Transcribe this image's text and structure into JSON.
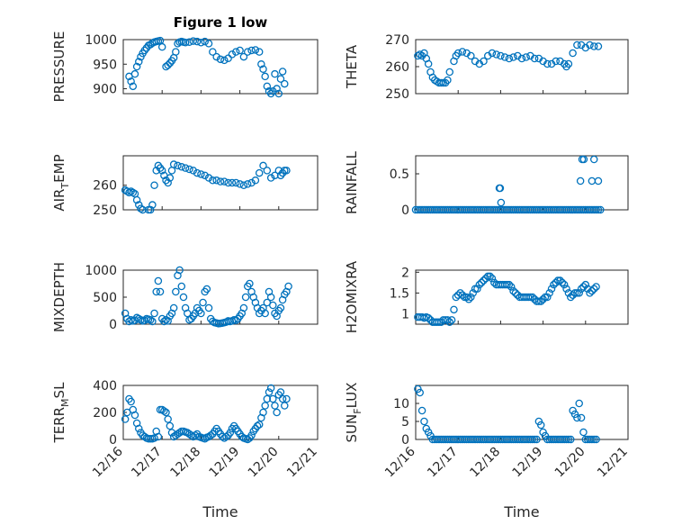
{
  "figure": {
    "title": "Figure 1 low"
  },
  "style": {
    "marker_color": "#0072bd",
    "marker": "o"
  },
  "chart_data": [
    {
      "type": "scatter",
      "ylabel": "PRESSURE",
      "xlabel": "",
      "title": "Figure 1 low",
      "xlim": [
        "12/16",
        "12/21"
      ],
      "ylim": [
        890,
        1000
      ],
      "yticks": [
        900,
        950,
        1000
      ],
      "xticks": [],
      "grid": true,
      "x": [
        16.15,
        16.2,
        16.25,
        16.3,
        16.35,
        16.4,
        16.45,
        16.5,
        16.55,
        16.6,
        16.65,
        16.7,
        16.75,
        16.8,
        16.85,
        16.9,
        16.95,
        17.0,
        17.1,
        17.15,
        17.2,
        17.25,
        17.3,
        17.35,
        17.4,
        17.45,
        17.5,
        17.55,
        17.6,
        17.7,
        17.8,
        17.9,
        18.0,
        18.1,
        18.2,
        18.3,
        18.4,
        18.5,
        18.6,
        18.7,
        18.8,
        18.9,
        19.0,
        19.1,
        19.2,
        19.3,
        19.4,
        19.5,
        19.55,
        19.6,
        19.65,
        19.7,
        19.75,
        19.8,
        19.85,
        19.9,
        19.95,
        20.0,
        20.05,
        20.1,
        20.15
      ],
      "y": [
        925,
        915,
        905,
        930,
        945,
        955,
        965,
        972,
        978,
        983,
        988,
        990,
        993,
        995,
        996,
        997,
        998,
        985,
        945,
        948,
        952,
        957,
        963,
        975,
        992,
        995,
        996,
        995,
        994,
        995,
        997,
        996,
        994,
        996,
        992,
        975,
        965,
        960,
        958,
        962,
        970,
        975,
        978,
        965,
        975,
        978,
        979,
        975,
        950,
        940,
        925,
        905,
        895,
        890,
        895,
        930,
        900,
        890,
        920,
        935,
        910
      ]
    },
    {
      "type": "scatter",
      "ylabel": "THETA",
      "xlabel": "",
      "title": "",
      "xlim": [
        "12/16",
        "12/21"
      ],
      "ylim": [
        250,
        270
      ],
      "yticks": [
        250,
        260,
        270
      ],
      "xticks": [],
      "grid": true,
      "x": [
        16.05,
        16.1,
        16.15,
        16.2,
        16.25,
        16.3,
        16.35,
        16.4,
        16.45,
        16.5,
        16.55,
        16.6,
        16.65,
        16.7,
        16.75,
        16.8,
        16.9,
        16.95,
        17.0,
        17.1,
        17.2,
        17.3,
        17.4,
        17.5,
        17.6,
        17.7,
        17.8,
        17.9,
        18.0,
        18.1,
        18.2,
        18.3,
        18.4,
        18.5,
        18.6,
        18.7,
        18.8,
        18.9,
        19.0,
        19.1,
        19.2,
        19.3,
        19.4,
        19.5,
        19.55,
        19.6,
        19.7,
        19.8,
        19.9,
        20.0,
        20.1,
        20.2,
        20.3
      ],
      "y": [
        264,
        264.5,
        264,
        265,
        263,
        261,
        258,
        256,
        255,
        254.5,
        254,
        254,
        254,
        254,
        255,
        258,
        262,
        264,
        265,
        265.5,
        265,
        264,
        262,
        261,
        262,
        264,
        265,
        264.5,
        264,
        263.5,
        263,
        263.5,
        264,
        263,
        263.5,
        264,
        263,
        263,
        262,
        261,
        261,
        262,
        262,
        261,
        260,
        261,
        265,
        268,
        268,
        267,
        268,
        267.5,
        267.5
      ]
    },
    {
      "type": "scatter",
      "ylabel": "AIR_TEMP",
      "xlabel": "",
      "title": "",
      "xlim": [
        "12/16",
        "12/21"
      ],
      "ylim": [
        250,
        272
      ],
      "yticks": [
        250,
        260
      ],
      "xticks": [],
      "grid": true,
      "x": [
        16.05,
        16.1,
        16.15,
        16.2,
        16.25,
        16.3,
        16.35,
        16.4,
        16.45,
        16.5,
        16.55,
        16.6,
        16.65,
        16.7,
        16.75,
        16.8,
        16.85,
        16.9,
        16.95,
        17.0,
        17.05,
        17.1,
        17.15,
        17.2,
        17.25,
        17.3,
        17.4,
        17.5,
        17.6,
        17.7,
        17.8,
        17.9,
        18.0,
        18.1,
        18.2,
        18.3,
        18.4,
        18.5,
        18.6,
        18.7,
        18.8,
        18.9,
        19.0,
        19.1,
        19.2,
        19.3,
        19.4,
        19.5,
        19.6,
        19.7,
        19.8,
        19.9,
        20.0,
        20.05,
        20.1,
        20.15,
        20.2
      ],
      "y": [
        258,
        257.5,
        257,
        257.5,
        257,
        256.5,
        254,
        252,
        250.5,
        250,
        249.5,
        249.5,
        250,
        250,
        252,
        260,
        266,
        268,
        267,
        266,
        264,
        262,
        261,
        263,
        266,
        268.5,
        268,
        267.5,
        267,
        266.5,
        266,
        265,
        264.5,
        264,
        263,
        262,
        262,
        261.5,
        261.5,
        261,
        261,
        261,
        260.5,
        260,
        260.5,
        261,
        262,
        265,
        268,
        266,
        263,
        264,
        266,
        264,
        265,
        266,
        266
      ]
    },
    {
      "type": "scatter",
      "ylabel": "RAINFALL",
      "xlabel": "",
      "title": "",
      "xlim": [
        "12/16",
        "12/21"
      ],
      "ylim": [
        0,
        0.75
      ],
      "yticks": [
        0,
        0.5
      ],
      "xticks": [],
      "grid": true,
      "x": [
        16.0,
        16.05,
        16.1,
        16.15,
        16.2,
        16.25,
        16.3,
        16.35,
        16.4,
        16.45,
        16.5,
        16.55,
        16.6,
        16.65,
        16.7,
        16.75,
        16.8,
        16.85,
        16.9,
        16.95,
        17.0,
        17.05,
        17.1,
        17.15,
        17.2,
        17.25,
        17.3,
        17.35,
        17.4,
        17.45,
        17.5,
        17.55,
        17.6,
        17.65,
        17.7,
        17.75,
        17.8,
        17.85,
        17.9,
        17.95,
        18.0,
        18.05,
        18.1,
        18.15,
        18.2,
        18.25,
        18.3,
        18.35,
        18.4,
        18.45,
        18.5,
        18.55,
        18.6,
        18.65,
        18.7,
        18.75,
        18.8,
        18.85,
        18.9,
        18.95,
        19.0,
        19.05,
        19.1,
        19.15,
        19.2,
        19.25,
        19.3,
        19.35,
        19.4,
        19.45,
        19.5,
        19.55,
        19.6,
        19.65,
        19.7,
        19.75,
        19.8,
        19.85,
        19.9,
        19.95,
        20.0,
        20.05,
        20.1,
        20.15,
        20.2,
        20.25,
        20.3,
        20.35,
        17.97,
        17.99,
        18.01,
        19.88,
        19.92,
        19.96,
        20.15,
        20.2,
        20.3
      ],
      "y": [
        0,
        0,
        0,
        0,
        0,
        0,
        0,
        0,
        0,
        0,
        0,
        0,
        0,
        0,
        0,
        0,
        0,
        0,
        0,
        0,
        0,
        0,
        0,
        0,
        0,
        0,
        0,
        0,
        0,
        0,
        0,
        0,
        0,
        0,
        0,
        0,
        0,
        0,
        0,
        0,
        0,
        0,
        0,
        0,
        0,
        0,
        0,
        0,
        0,
        0,
        0,
        0,
        0,
        0,
        0,
        0,
        0,
        0,
        0,
        0,
        0,
        0,
        0,
        0,
        0,
        0,
        0,
        0,
        0,
        0,
        0,
        0,
        0,
        0,
        0,
        0,
        0,
        0,
        0,
        0,
        0,
        0,
        0,
        0,
        0,
        0,
        0,
        0,
        0.3,
        0.3,
        0.1,
        0.4,
        0.7,
        0.7,
        0.4,
        0.7,
        0.4
      ]
    },
    {
      "type": "scatter",
      "ylabel": "MIXDEPTH",
      "xlabel": "",
      "title": "",
      "xlim": [
        "12/16",
        "12/21"
      ],
      "ylim": [
        0,
        1000
      ],
      "yticks": [
        0,
        500,
        1000
      ],
      "xticks": [],
      "grid": true,
      "x": [
        16.05,
        16.1,
        16.15,
        16.2,
        16.25,
        16.3,
        16.35,
        16.4,
        16.45,
        16.5,
        16.55,
        16.6,
        16.65,
        16.7,
        16.75,
        16.8,
        16.85,
        16.9,
        16.95,
        17.0,
        17.05,
        17.1,
        17.15,
        17.2,
        17.25,
        17.3,
        17.35,
        17.4,
        17.45,
        17.5,
        17.55,
        17.6,
        17.65,
        17.7,
        17.75,
        17.8,
        17.85,
        17.9,
        17.95,
        18.0,
        18.05,
        18.1,
        18.15,
        18.2,
        18.25,
        18.3,
        18.35,
        18.4,
        18.45,
        18.5,
        18.55,
        18.6,
        18.65,
        18.7,
        18.75,
        18.8,
        18.85,
        18.9,
        18.95,
        19.0,
        19.05,
        19.1,
        19.15,
        19.2,
        19.25,
        19.3,
        19.35,
        19.4,
        19.45,
        19.5,
        19.55,
        19.6,
        19.65,
        19.7,
        19.75,
        19.8,
        19.85,
        19.9,
        19.95,
        20.0,
        20.05,
        20.1,
        20.15,
        20.2,
        20.25
      ],
      "y": [
        200,
        100,
        50,
        80,
        60,
        70,
        120,
        100,
        80,
        60,
        70,
        100,
        90,
        80,
        50,
        200,
        600,
        800,
        600,
        100,
        50,
        80,
        60,
        150,
        200,
        300,
        600,
        900,
        1000,
        700,
        500,
        300,
        200,
        80,
        100,
        150,
        200,
        300,
        250,
        200,
        400,
        600,
        650,
        300,
        100,
        50,
        30,
        20,
        10,
        15,
        20,
        30,
        40,
        60,
        50,
        60,
        80,
        70,
        100,
        150,
        200,
        300,
        500,
        700,
        750,
        600,
        500,
        400,
        300,
        200,
        250,
        300,
        200,
        400,
        600,
        500,
        350,
        200,
        150,
        250,
        300,
        450,
        550,
        600,
        700
      ]
    },
    {
      "type": "scatter",
      "ylabel": "H2OMIXRA",
      "xlabel": "",
      "title": "",
      "xlim": [
        "12/16",
        "12/21"
      ],
      "ylim": [
        0.75,
        2.05
      ],
      "yticks": [
        1,
        1.5,
        2
      ],
      "xticks": [],
      "grid": true,
      "x": [
        16.05,
        16.1,
        16.15,
        16.2,
        16.25,
        16.3,
        16.35,
        16.4,
        16.45,
        16.5,
        16.55,
        16.6,
        16.65,
        16.7,
        16.75,
        16.8,
        16.85,
        16.9,
        16.95,
        17.0,
        17.05,
        17.1,
        17.15,
        17.2,
        17.25,
        17.3,
        17.35,
        17.4,
        17.45,
        17.5,
        17.55,
        17.6,
        17.65,
        17.7,
        17.75,
        17.8,
        17.85,
        17.9,
        17.95,
        18.0,
        18.05,
        18.1,
        18.15,
        18.2,
        18.25,
        18.3,
        18.35,
        18.4,
        18.45,
        18.5,
        18.55,
        18.6,
        18.65,
        18.7,
        18.75,
        18.8,
        18.85,
        18.9,
        18.95,
        19.0,
        19.05,
        19.1,
        19.15,
        19.2,
        19.25,
        19.3,
        19.35,
        19.4,
        19.45,
        19.5,
        19.55,
        19.6,
        19.65,
        19.7,
        19.75,
        19.8,
        19.85,
        19.9,
        19.95,
        20.0,
        20.05,
        20.1,
        20.15,
        20.2,
        20.25
      ],
      "y": [
        0.92,
        0.92,
        0.92,
        0.9,
        0.92,
        0.9,
        0.85,
        0.8,
        0.8,
        0.8,
        0.8,
        0.8,
        0.85,
        0.85,
        0.85,
        0.8,
        0.85,
        1.1,
        1.4,
        1.45,
        1.5,
        1.45,
        1.4,
        1.4,
        1.35,
        1.4,
        1.5,
        1.6,
        1.6,
        1.7,
        1.75,
        1.8,
        1.85,
        1.9,
        1.9,
        1.85,
        1.75,
        1.7,
        1.7,
        1.7,
        1.7,
        1.7,
        1.7,
        1.7,
        1.65,
        1.55,
        1.5,
        1.45,
        1.4,
        1.4,
        1.4,
        1.4,
        1.4,
        1.4,
        1.4,
        1.35,
        1.3,
        1.3,
        1.3,
        1.35,
        1.4,
        1.4,
        1.5,
        1.6,
        1.7,
        1.75,
        1.8,
        1.8,
        1.75,
        1.7,
        1.6,
        1.5,
        1.4,
        1.45,
        1.5,
        1.5,
        1.5,
        1.6,
        1.65,
        1.7,
        1.6,
        1.5,
        1.55,
        1.6,
        1.65
      ]
    },
    {
      "type": "scatter",
      "ylabel": "TERR_MSL",
      "xlabel": "Time",
      "title": "",
      "xlim": [
        "12/16",
        "12/21"
      ],
      "ylim": [
        0,
        400
      ],
      "yticks": [
        0,
        200,
        400
      ],
      "xticks": [
        "12/16",
        "12/17",
        "12/18",
        "12/19",
        "12/20",
        "12/21"
      ],
      "grid": true,
      "x": [
        16.05,
        16.1,
        16.15,
        16.2,
        16.25,
        16.3,
        16.35,
        16.4,
        16.45,
        16.5,
        16.55,
        16.6,
        16.65,
        16.7,
        16.75,
        16.8,
        16.85,
        16.9,
        16.95,
        17.0,
        17.05,
        17.1,
        17.15,
        17.2,
        17.25,
        17.3,
        17.35,
        17.4,
        17.45,
        17.5,
        17.55,
        17.6,
        17.65,
        17.7,
        17.75,
        17.8,
        17.85,
        17.9,
        17.95,
        18.0,
        18.05,
        18.1,
        18.15,
        18.2,
        18.25,
        18.3,
        18.35,
        18.4,
        18.45,
        18.5,
        18.55,
        18.6,
        18.65,
        18.7,
        18.75,
        18.8,
        18.85,
        18.9,
        18.95,
        19.0,
        19.05,
        19.1,
        19.15,
        19.2,
        19.25,
        19.3,
        19.35,
        19.4,
        19.45,
        19.5,
        19.55,
        19.6,
        19.65,
        19.7,
        19.75,
        19.8,
        19.85,
        19.9,
        19.95,
        20.0,
        20.05,
        20.1,
        20.15,
        20.2
      ],
      "y": [
        150,
        200,
        300,
        280,
        220,
        180,
        120,
        80,
        50,
        30,
        20,
        10,
        5,
        5,
        5,
        10,
        60,
        20,
        220,
        220,
        210,
        200,
        150,
        100,
        50,
        20,
        30,
        40,
        50,
        60,
        60,
        55,
        50,
        40,
        30,
        20,
        30,
        40,
        20,
        15,
        10,
        5,
        15,
        20,
        30,
        40,
        60,
        80,
        60,
        40,
        20,
        10,
        20,
        30,
        50,
        80,
        100,
        80,
        60,
        40,
        20,
        10,
        5,
        0,
        10,
        30,
        60,
        80,
        100,
        110,
        160,
        200,
        250,
        300,
        350,
        380,
        300,
        250,
        200,
        330,
        350,
        300,
        250,
        300
      ]
    },
    {
      "type": "scatter",
      "ylabel": "SUN_FLUX",
      "xlabel": "Time",
      "title": "",
      "xlim": [
        "12/16",
        "12/21"
      ],
      "ylim": [
        0,
        15
      ],
      "yticks": [
        0,
        5,
        10
      ],
      "xticks": [
        "12/16",
        "12/17",
        "12/18",
        "12/19",
        "12/20",
        "12/21"
      ],
      "grid": true,
      "x": [
        16.05,
        16.1,
        16.15,
        16.2,
        16.25,
        16.3,
        16.35,
        16.4,
        16.45,
        16.5,
        16.55,
        16.6,
        16.65,
        16.7,
        16.75,
        16.8,
        16.85,
        16.9,
        16.95,
        17.0,
        17.05,
        17.1,
        17.15,
        17.2,
        17.25,
        17.3,
        17.35,
        17.4,
        17.45,
        17.5,
        17.55,
        17.6,
        17.65,
        17.7,
        17.75,
        17.8,
        17.85,
        17.9,
        17.95,
        18.0,
        18.05,
        18.1,
        18.15,
        18.2,
        18.25,
        18.3,
        18.35,
        18.4,
        18.45,
        18.5,
        18.55,
        18.6,
        18.65,
        18.7,
        18.75,
        18.8,
        18.85,
        18.9,
        18.95,
        19.0,
        19.05,
        19.1,
        19.15,
        19.2,
        19.25,
        19.3,
        19.35,
        19.4,
        19.45,
        19.5,
        19.55,
        19.6,
        19.65,
        19.7,
        19.75,
        19.8,
        19.85,
        19.9,
        19.95,
        20.0,
        20.05,
        20.1,
        20.15,
        20.2,
        20.25
      ],
      "y": [
        14,
        13,
        8,
        5,
        3,
        2,
        1,
        0,
        0,
        0,
        0,
        0,
        0,
        0,
        0,
        0,
        0,
        0,
        0,
        0,
        0,
        0,
        0,
        0,
        0,
        0,
        0,
        0,
        0,
        0,
        0,
        0,
        0,
        0,
        0,
        0,
        0,
        0,
        0,
        0,
        0,
        0,
        0,
        0,
        0,
        0,
        0,
        0,
        0,
        0,
        0,
        0,
        0,
        0,
        0,
        0,
        0,
        5,
        4,
        2,
        1,
        0,
        0,
        0,
        0,
        0,
        0,
        0,
        0,
        0,
        0,
        0,
        0,
        8,
        7,
        6,
        10,
        6,
        2,
        0,
        0,
        0,
        0,
        0,
        0
      ]
    }
  ]
}
